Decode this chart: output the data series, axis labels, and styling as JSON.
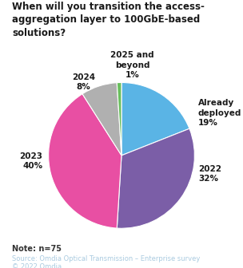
{
  "title": "When will you transition the access-\naggregation layer to 100GbE-based\nsolutions?",
  "slices": [
    {
      "label": "Already\ndeployed\n19%",
      "value": 19,
      "color": "#5ab4e5"
    },
    {
      "label": "2022\n32%",
      "value": 32,
      "color": "#7b5ea7"
    },
    {
      "label": "2023\n40%",
      "value": 40,
      "color": "#e84fa3"
    },
    {
      "label": "2024\n8%",
      "value": 8,
      "color": "#b0b0b0"
    },
    {
      "label": "2025 and\nbeyond\n1%",
      "value": 1,
      "color": "#6abf5e"
    }
  ],
  "note": "Note: n=75",
  "source_line1": "Source: Omdia Optical Transmission – Enterprise survey",
  "source_line2": "© 2022 Omdia",
  "background_color": "#ffffff",
  "title_fontsize": 8.5,
  "label_fontsize": 7.5,
  "note_fontsize": 7.0,
  "source_fontsize": 6.0,
  "note_color": "#333333",
  "source_color": "#aacbe0",
  "title_color": "#1a1a1a"
}
